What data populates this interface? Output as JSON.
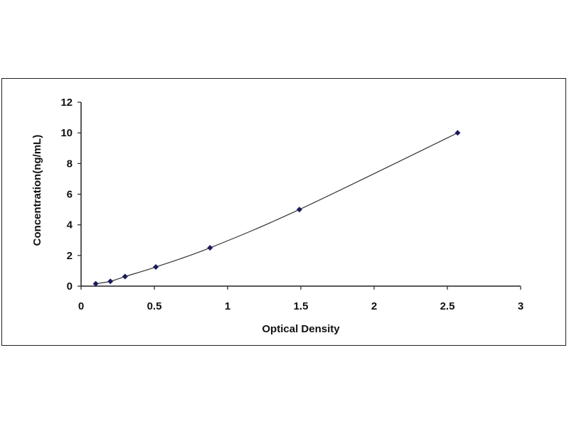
{
  "chart_data": {
    "type": "scatter",
    "title": "",
    "xlabel": "Optical Density",
    "ylabel": "Concentration(ng/mL)",
    "xlim": [
      0,
      3
    ],
    "ylim": [
      0,
      12
    ],
    "xticks": [
      "0",
      "0.5",
      "1",
      "1.5",
      "2",
      "2.5",
      "3"
    ],
    "yticks": [
      "0",
      "2",
      "4",
      "6",
      "8",
      "10",
      "12"
    ],
    "grid": false,
    "legend": "none",
    "trendline": true,
    "marker_color": "#1a1a5e",
    "line_color": "#333333",
    "series": [
      {
        "x": [
          0.1,
          0.2,
          0.3,
          0.51,
          0.88,
          1.49,
          2.57
        ],
        "y": [
          0.156,
          0.312,
          0.625,
          1.25,
          2.5,
          5,
          10
        ]
      }
    ]
  }
}
